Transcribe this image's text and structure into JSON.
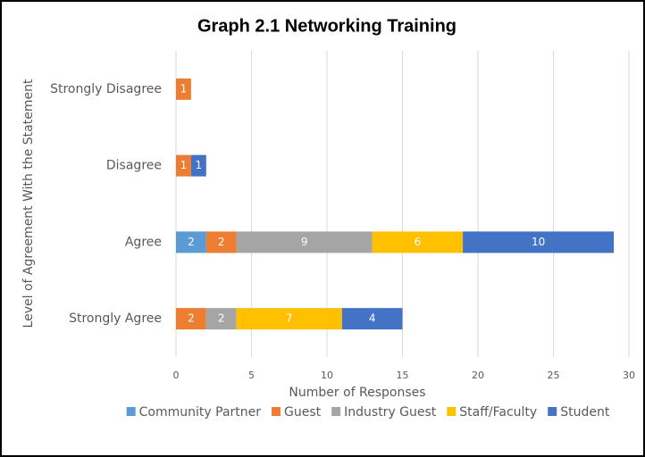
{
  "chart_data": {
    "type": "stacked_bar_horizontal",
    "title": "Graph 2.1 Networking Training",
    "x_label": "Number of Responses",
    "y_label": "Level of Agreement With the Statement",
    "categories": [
      "Strongly Disagree",
      "Disagree",
      "Agree",
      "Strongly Agree"
    ],
    "series": [
      {
        "name": "Community Partner",
        "color": "#5b9bd5",
        "values": [
          null,
          null,
          2,
          null
        ]
      },
      {
        "name": "Guest",
        "color": "#ed7d31",
        "values": [
          1,
          1,
          2,
          2
        ]
      },
      {
        "name": "Industry Guest",
        "color": "#a5a5a5",
        "values": [
          null,
          null,
          9,
          2
        ]
      },
      {
        "name": "Staff/Faculty",
        "color": "#ffc000",
        "values": [
          null,
          null,
          6,
          7
        ]
      },
      {
        "name": "Student",
        "color": "#4472c4",
        "values": [
          null,
          1,
          10,
          4
        ]
      }
    ],
    "xlim": [
      0,
      30
    ],
    "xticks": [
      0,
      5,
      10,
      15,
      20,
      25,
      30
    ],
    "grid": true,
    "legend": "bottom"
  }
}
